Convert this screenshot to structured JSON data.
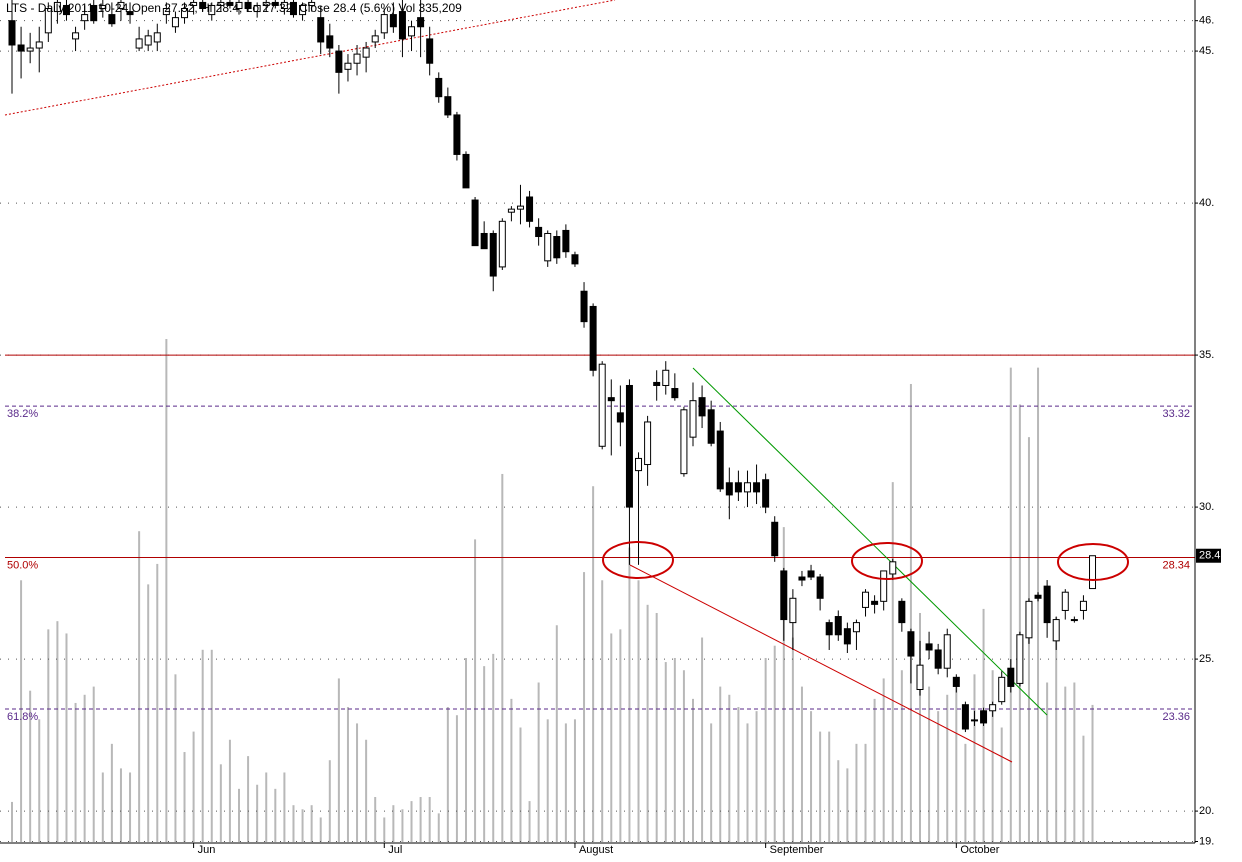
{
  "chart_data": {
    "type": "candlestick",
    "title": "LTS - Daily 2011-10-24 Open 27.32, Hi 28.4, Lo 27.32, Close 28.4 (5.6%) Vol 335,209",
    "categories": [
      null,
      null,
      null,
      null,
      null,
      null,
      null,
      null,
      null,
      null,
      null,
      null,
      null,
      null,
      null,
      null,
      null,
      null,
      null,
      null,
      "Jun",
      null,
      null,
      null,
      null,
      null,
      null,
      null,
      null,
      null,
      null,
      null,
      null,
      null,
      null,
      null,
      null,
      null,
      null,
      null,
      null,
      "Jul",
      null,
      null,
      null,
      null,
      null,
      null,
      null,
      null,
      null,
      null,
      null,
      null,
      null,
      null,
      null,
      null,
      null,
      null,
      null,
      null,
      "August",
      null,
      null,
      null,
      null,
      null,
      null,
      null,
      null,
      null,
      null,
      null,
      null,
      null,
      null,
      null,
      null,
      null,
      null,
      null,
      null,
      "September",
      null,
      null,
      null,
      null,
      null,
      null,
      null,
      null,
      null,
      null,
      null,
      null,
      null,
      null,
      null,
      null,
      null,
      null,
      null,
      null,
      "October",
      null,
      null,
      null,
      null,
      null,
      null,
      null,
      null,
      null,
      null,
      null,
      null,
      null,
      null,
      null
    ],
    "ohlc": [
      [
        46.0,
        46.7,
        43.6,
        45.2
      ],
      [
        45.2,
        45.8,
        44.1,
        45.0
      ],
      [
        45.0,
        45.6,
        44.6,
        45.1
      ],
      [
        45.1,
        45.8,
        44.3,
        45.3
      ],
      [
        45.6,
        46.6,
        45.3,
        46.4
      ],
      [
        46.3,
        46.7,
        45.9,
        46.6
      ],
      [
        46.5,
        46.7,
        46.0,
        46.2
      ],
      [
        45.4,
        45.8,
        45.0,
        45.6
      ],
      [
        46.0,
        46.5,
        45.7,
        46.2
      ],
      [
        46.5,
        46.7,
        45.9,
        46.0
      ],
      [
        46.4,
        46.7,
        46.1,
        46.5
      ],
      [
        46.2,
        46.6,
        45.8,
        45.9
      ],
      [
        46.4,
        46.7,
        46.0,
        46.6
      ],
      [
        46.3,
        46.6,
        45.9,
        46.2
      ],
      [
        45.1,
        45.8,
        45.0,
        45.4
      ],
      [
        45.2,
        45.7,
        45.0,
        45.5
      ],
      [
        45.3,
        45.9,
        45.0,
        45.6
      ],
      [
        46.2,
        46.6,
        45.9,
        46.4
      ],
      [
        45.8,
        46.3,
        45.6,
        46.1
      ],
      [
        46.1,
        46.6,
        45.9,
        46.4
      ],
      [
        46.5,
        46.7,
        46.2,
        46.6
      ],
      [
        46.6,
        46.7,
        46.3,
        46.4
      ],
      [
        46.2,
        46.6,
        46.0,
        46.5
      ],
      [
        46.5,
        46.7,
        46.3,
        46.6
      ],
      [
        46.6,
        46.7,
        46.4,
        46.5
      ],
      [
        46.4,
        46.7,
        46.2,
        46.6
      ],
      [
        46.6,
        46.7,
        46.3,
        46.4
      ],
      [
        46.3,
        46.6,
        46.1,
        46.5
      ],
      [
        46.5,
        46.7,
        46.3,
        46.6
      ],
      [
        46.6,
        46.7,
        46.4,
        46.5
      ],
      [
        46.4,
        46.7,
        46.2,
        46.6
      ],
      [
        46.6,
        46.7,
        46.1,
        46.2
      ],
      [
        46.2,
        46.6,
        46.0,
        46.5
      ],
      [
        46.5,
        46.7,
        46.3,
        46.6
      ],
      [
        46.1,
        46.5,
        44.9,
        45.3
      ],
      [
        45.5,
        45.9,
        44.8,
        45.1
      ],
      [
        45.0,
        45.2,
        43.6,
        44.3
      ],
      [
        44.4,
        44.9,
        44.0,
        44.6
      ],
      [
        44.6,
        45.2,
        44.2,
        44.9
      ],
      [
        44.8,
        45.3,
        44.3,
        45.1
      ],
      [
        45.3,
        45.7,
        45.1,
        45.5
      ],
      [
        45.6,
        46.4,
        45.4,
        46.2
      ],
      [
        46.2,
        46.6,
        45.6,
        45.8
      ],
      [
        46.3,
        46.7,
        44.8,
        45.4
      ],
      [
        45.5,
        46.0,
        45.0,
        45.8
      ],
      [
        46.1,
        46.7,
        44.8,
        45.8
      ],
      [
        45.4,
        45.8,
        44.2,
        44.6
      ],
      [
        44.1,
        44.3,
        43.3,
        43.5
      ],
      [
        43.5,
        43.8,
        42.8,
        42.9
      ],
      [
        42.9,
        43.0,
        41.4,
        41.6
      ],
      [
        41.6,
        41.7,
        40.5,
        40.5
      ],
      [
        40.1,
        40.2,
        38.6,
        38.6
      ],
      [
        39.0,
        39.4,
        38.5,
        38.5
      ],
      [
        39.0,
        39.1,
        37.1,
        37.6
      ],
      [
        37.9,
        39.5,
        37.8,
        39.4
      ],
      [
        39.7,
        39.9,
        39.4,
        39.8
      ],
      [
        39.8,
        40.6,
        39.3,
        39.9
      ],
      [
        40.2,
        40.4,
        39.2,
        39.4
      ],
      [
        39.2,
        39.5,
        38.6,
        38.9
      ],
      [
        38.1,
        39.1,
        37.9,
        39.0
      ],
      [
        38.9,
        39.1,
        38.0,
        38.2
      ],
      [
        39.1,
        39.3,
        38.2,
        38.4
      ],
      [
        38.3,
        38.4,
        37.9,
        38.0
      ],
      [
        37.1,
        37.4,
        35.9,
        36.1
      ],
      [
        36.6,
        36.7,
        34.3,
        34.5
      ],
      [
        32.0,
        34.8,
        31.9,
        34.7
      ],
      [
        33.6,
        34.2,
        31.7,
        33.5
      ],
      [
        33.1,
        34.0,
        32.0,
        32.8
      ],
      [
        34.0,
        34.2,
        28.1,
        30.0
      ],
      [
        31.2,
        31.8,
        28.1,
        31.6
      ],
      [
        31.4,
        33.0,
        30.7,
        32.8
      ],
      [
        34.1,
        34.5,
        33.5,
        34.0
      ],
      [
        34.0,
        34.8,
        33.7,
        34.5
      ],
      [
        33.9,
        34.4,
        33.5,
        33.6
      ],
      [
        31.1,
        33.3,
        31.0,
        33.2
      ],
      [
        32.3,
        34.1,
        32.0,
        33.5
      ],
      [
        33.6,
        34.0,
        32.6,
        33.0
      ],
      [
        33.2,
        33.5,
        32.0,
        32.1
      ],
      [
        32.5,
        32.8,
        30.5,
        30.6
      ],
      [
        30.8,
        31.3,
        29.6,
        30.4
      ],
      [
        30.8,
        31.2,
        30.2,
        30.5
      ],
      [
        30.5,
        31.2,
        30.0,
        30.8
      ],
      [
        30.8,
        31.4,
        30.1,
        30.5
      ],
      [
        30.9,
        31.1,
        29.8,
        30.0
      ],
      [
        29.5,
        29.7,
        28.2,
        28.4
      ],
      [
        27.9,
        28.0,
        25.6,
        26.3
      ],
      [
        26.2,
        27.3,
        25.3,
        27.0
      ],
      [
        27.7,
        27.9,
        27.4,
        27.6
      ],
      [
        27.9,
        28.1,
        27.6,
        27.7
      ],
      [
        27.7,
        27.8,
        26.6,
        27.0
      ],
      [
        26.2,
        26.3,
        25.3,
        25.8
      ],
      [
        26.4,
        26.6,
        25.6,
        25.8
      ],
      [
        26.0,
        26.2,
        25.2,
        25.5
      ],
      [
        25.9,
        26.3,
        25.3,
        26.2
      ],
      [
        26.7,
        27.3,
        26.4,
        27.2
      ],
      [
        26.9,
        27.1,
        26.5,
        26.8
      ],
      [
        26.9,
        27.8,
        26.6,
        27.9
      ],
      [
        27.8,
        28.3,
        27.6,
        28.2
      ],
      [
        26.9,
        27.0,
        25.9,
        26.2
      ],
      [
        25.9,
        26.0,
        24.2,
        25.1
      ],
      [
        24.0,
        25.6,
        23.8,
        24.8
      ],
      [
        25.5,
        25.9,
        25.0,
        25.3
      ],
      [
        25.3,
        25.5,
        24.5,
        24.7
      ],
      [
        24.7,
        26.0,
        24.4,
        25.8
      ],
      [
        24.4,
        24.5,
        23.9,
        24.1
      ],
      [
        23.5,
        23.6,
        22.6,
        22.7
      ],
      [
        23.0,
        23.3,
        22.8,
        23.0
      ],
      [
        23.3,
        23.4,
        22.8,
        22.9
      ],
      [
        23.3,
        23.6,
        23.1,
        23.5
      ],
      [
        23.6,
        24.6,
        23.5,
        24.4
      ],
      [
        24.7,
        25.0,
        23.9,
        24.1
      ],
      [
        24.2,
        25.9,
        24.1,
        25.8
      ],
      [
        25.7,
        27.0,
        25.5,
        26.9
      ],
      [
        27.1,
        27.2,
        26.9,
        27.0
      ],
      [
        27.4,
        27.6,
        25.7,
        26.2
      ],
      [
        25.6,
        26.4,
        25.3,
        26.3
      ],
      [
        26.6,
        27.3,
        26.3,
        27.2
      ],
      [
        26.3,
        26.4,
        26.2,
        26.3
      ],
      [
        26.6,
        27.1,
        26.3,
        26.9
      ],
      [
        27.32,
        28.4,
        27.32,
        28.4
      ]
    ],
    "volume": [
      98000,
      640000,
      370000,
      300000,
      520000,
      540000,
      510000,
      340000,
      360000,
      380000,
      170000,
      240000,
      180000,
      170000,
      760000,
      630000,
      680000,
      1230000,
      410000,
      220000,
      270000,
      470000,
      470000,
      190000,
      250000,
      130000,
      210000,
      140000,
      170000,
      130000,
      170000,
      90000,
      80000,
      90000,
      60000,
      200000,
      400000,
      330000,
      290000,
      250000,
      110000,
      60000,
      90000,
      80000,
      100000,
      110000,
      110000,
      70000,
      330000,
      310000,
      450000,
      740000,
      430000,
      460000,
      900000,
      350000,
      280000,
      100000,
      390000,
      300000,
      530000,
      290000,
      300000,
      660000,
      870000,
      640000,
      510000,
      520000,
      720000,
      640000,
      580000,
      560000,
      440000,
      450000,
      420000,
      350000,
      500000,
      290000,
      380000,
      360000,
      330000,
      290000,
      320000,
      450000,
      480000,
      770000,
      500000,
      380000,
      320000,
      270000,
      270000,
      200000,
      180000,
      240000,
      240000,
      350000,
      400000,
      880000,
      420000,
      1120000,
      560000,
      380000,
      320000,
      360000,
      380000,
      240000,
      410000,
      570000,
      420000,
      280000,
      1160000,
      1070000,
      990000,
      1160000,
      390000,
      550000,
      380000,
      390000,
      260000,
      335209
    ],
    "ylim": [
      18.49,
      46.68
    ],
    "yticks": [
      {
        "value": 19,
        "label": "19."
      },
      {
        "value": 20,
        "label": "20."
      },
      {
        "value": 25,
        "label": "25."
      },
      {
        "value": 30,
        "label": "30."
      },
      {
        "value": 35,
        "label": "35."
      },
      {
        "value": 40,
        "label": "40."
      },
      {
        "value": 45,
        "label": "45."
      },
      {
        "value": 46,
        "label": "46."
      }
    ],
    "grid": true,
    "up_color": "#ffffff",
    "down_color": "#000000",
    "volume_color": "#b8b8b8",
    "levels": [
      {
        "value": 35,
        "color": "#b00000",
        "style": "solid"
      },
      {
        "value": 33.32,
        "pct": "38.2%",
        "color": "#5a2a8a",
        "style": "dashed"
      },
      {
        "value": 28.34,
        "pct": "50.0%",
        "color": "#b00000",
        "style": "solid"
      },
      {
        "value": 23.36,
        "pct": "61.8%",
        "color": "#5a2a8a",
        "style": "dashed"
      }
    ]
  }
}
